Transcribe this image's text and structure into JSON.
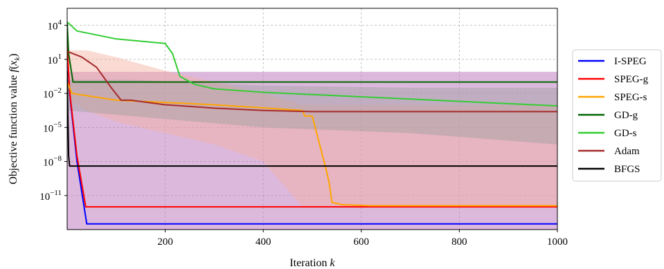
{
  "chart_data": {
    "type": "line",
    "xlabel": "Iteration k",
    "ylabel": "Objective function value f(x_k)",
    "xlim": [
      0,
      1000
    ],
    "yscale": "log",
    "ylim_log10": [
      -14,
      5.5
    ],
    "grid": true,
    "legend_position": "right-outside",
    "x_ticks": [
      200,
      400,
      600,
      800,
      1000
    ],
    "y_ticks": [
      {
        "exp": 4,
        "label": "10",
        "sup": "4"
      },
      {
        "exp": 1,
        "label": "10",
        "sup": "1"
      },
      {
        "exp": -2,
        "label": "10",
        "sup": "−2"
      },
      {
        "exp": -5,
        "label": "10",
        "sup": "−5"
      },
      {
        "exp": -8,
        "label": "10",
        "sup": "−8"
      },
      {
        "exp": -11,
        "label": "10",
        "sup": "−11"
      }
    ],
    "series": [
      {
        "name": "I-SPEG",
        "color": "#0000ff",
        "x": [
          0,
          5,
          20,
          40,
          1000
        ],
        "log10_y": [
          2.0,
          -2.0,
          -8.0,
          -13.5,
          -13.5
        ]
      },
      {
        "name": "SPEG-g",
        "color": "#ff0000",
        "x": [
          0,
          5,
          20,
          38,
          1000
        ],
        "log10_y": [
          2.2,
          -1.8,
          -7.5,
          -12.0,
          -12.0
        ]
      },
      {
        "name": "SPEG-s",
        "color": "#ffa500",
        "x": [
          0,
          10,
          100,
          300,
          480,
          485,
          500,
          530,
          535,
          540,
          560,
          620,
          1000
        ],
        "log10_y": [
          -1.0,
          -2.0,
          -2.6,
          -3.0,
          -3.5,
          -4.0,
          -4.0,
          -9.0,
          -10.0,
          -11.6,
          -11.8,
          -11.9,
          -11.9
        ]
      },
      {
        "name": "GD-g",
        "color": "#006400",
        "x": [
          0,
          3,
          12,
          1000
        ],
        "log10_y": [
          4.3,
          1.5,
          -1.0,
          -1.0
        ]
      },
      {
        "name": "GD-s",
        "color": "#32cd32",
        "x": [
          0,
          20,
          100,
          200,
          215,
          230,
          260,
          300,
          400,
          500,
          600,
          700,
          800,
          900,
          1000
        ],
        "log10_y": [
          4.3,
          3.5,
          2.8,
          2.4,
          1.5,
          -0.5,
          -1.2,
          -1.6,
          -1.9,
          -2.1,
          -2.3,
          -2.5,
          -2.7,
          -2.9,
          -3.1
        ]
      },
      {
        "name": "Adam",
        "color": "#a52a2a",
        "x": [
          0,
          30,
          60,
          90,
          110,
          130,
          200,
          300,
          400,
          500,
          600,
          700,
          800,
          900,
          1000
        ],
        "log10_y": [
          1.7,
          1.2,
          0.3,
          -1.5,
          -2.6,
          -2.6,
          -3.0,
          -3.3,
          -3.5,
          -3.6,
          -3.6,
          -3.6,
          -3.6,
          -3.6,
          -3.6
        ]
      },
      {
        "name": "BFGS",
        "color": "#000000",
        "x": [
          0,
          1,
          3,
          5,
          1000
        ],
        "log10_y": [
          0.0,
          -3.0,
          -7.5,
          -8.4,
          -8.4
        ]
      }
    ],
    "bands": [
      {
        "series": "Adam",
        "color": "#c080c0",
        "opacity": 0.55,
        "x": [
          0,
          1000
        ],
        "log10_upper": [
          -0.1,
          -0.1
        ],
        "log10_lower": [
          -14,
          -14
        ]
      },
      {
        "series": "SPEG-s",
        "color": "#f4b0a0",
        "opacity": 0.45,
        "x": [
          0,
          40,
          100,
          200,
          300,
          400,
          480,
          600,
          1000
        ],
        "log10_upper": [
          1.8,
          1.8,
          1.2,
          0.0,
          -1.0,
          -2.0,
          -3.0,
          -3.0,
          -3.0
        ],
        "log10_lower": [
          -2.5,
          -3.5,
          -4.5,
          -5.5,
          -6.5,
          -8.0,
          -12.0,
          -12.0,
          -12.0
        ]
      },
      {
        "series": "Adam",
        "color": "#a0a0a0",
        "opacity": 0.45,
        "x": [
          0,
          130,
          400,
          700,
          1000
        ],
        "log10_upper": [
          -0.8,
          -0.8,
          -1.3,
          -1.5,
          -1.5
        ],
        "log10_lower": [
          -3.5,
          -4.0,
          -5.0,
          -5.5,
          -6.5
        ]
      }
    ],
    "legend_labels": [
      "I-SPEG",
      "SPEG-g",
      "SPEG-s",
      "GD-g",
      "GD-s",
      "Adam",
      "BFGS"
    ]
  }
}
